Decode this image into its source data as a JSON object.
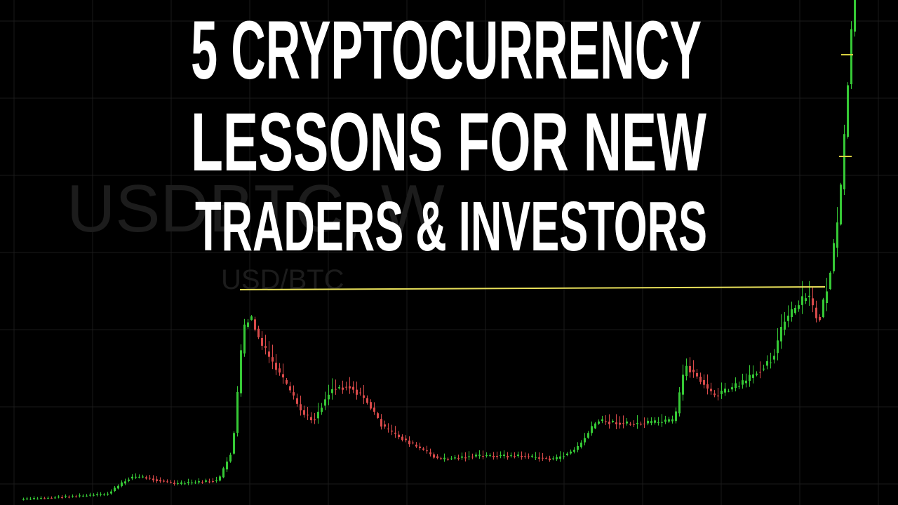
{
  "title": {
    "lines": [
      "5 CRYPTOCURRENCY",
      "LESSONS FOR NEW",
      "TRADERS & INVESTORS"
    ]
  },
  "watermark": {
    "symbol": "USDBTC, W",
    "pair": "USD/BTC"
  }
}
